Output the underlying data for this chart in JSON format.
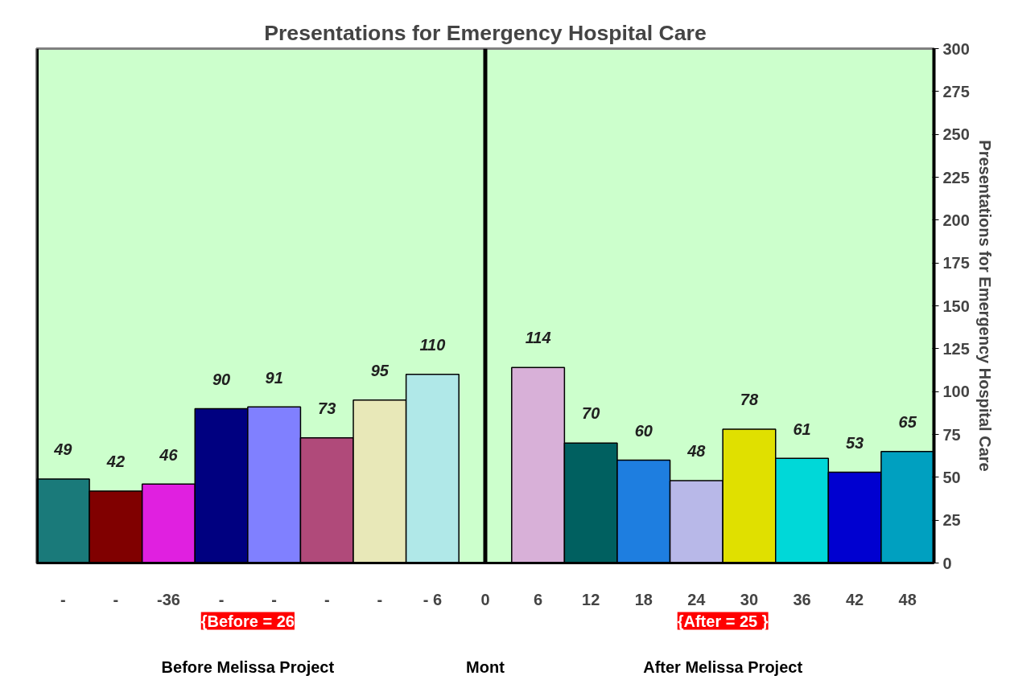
{
  "chart_data": {
    "type": "bar",
    "title": "Presentations for Emergency Hospital Care",
    "ylabel": "Presentations for Emergency Hospital Care",
    "categories": [
      "-",
      "-",
      "-36",
      "-",
      "-",
      "-",
      "-",
      "- 6",
      "0",
      "6",
      "12",
      "18",
      "24",
      "30",
      "36",
      "42",
      "48"
    ],
    "values": [
      49,
      42,
      46,
      90,
      91,
      73,
      95,
      110,
      0,
      114,
      70,
      60,
      48,
      78,
      61,
      53,
      65
    ],
    "value_labels": [
      "49",
      "42",
      "46",
      "90",
      "91",
      "73",
      "95",
      "110",
      null,
      "114",
      "70",
      "60",
      "48",
      "78",
      "61",
      "53",
      "65"
    ],
    "colors": [
      "#1a7a7a",
      "#800000",
      "#e020e0",
      "#000080",
      "#8080ff",
      "#b04a7a",
      "#e8e8b8",
      "#b0e8e8",
      "#a0a0a0",
      "#d8b0d8",
      "#006060",
      "#1e7ee0",
      "#b8b8e8",
      "#e0e000",
      "#00d8d8",
      "#0000d0",
      "#00a0c0"
    ],
    "ylim": [
      0,
      300
    ],
    "yticks": [
      0,
      25,
      50,
      75,
      100,
      125,
      150,
      175,
      200,
      225,
      250,
      275,
      300
    ],
    "ref_lines": [
      {
        "axis": "x",
        "value": "0",
        "color": "#000000"
      }
    ],
    "annotations": [
      "{Before = 26",
      "{After = 25 }",
      "Before Melissa Project",
      "Mont",
      "After Melissa Project"
    ],
    "grid": false
  }
}
